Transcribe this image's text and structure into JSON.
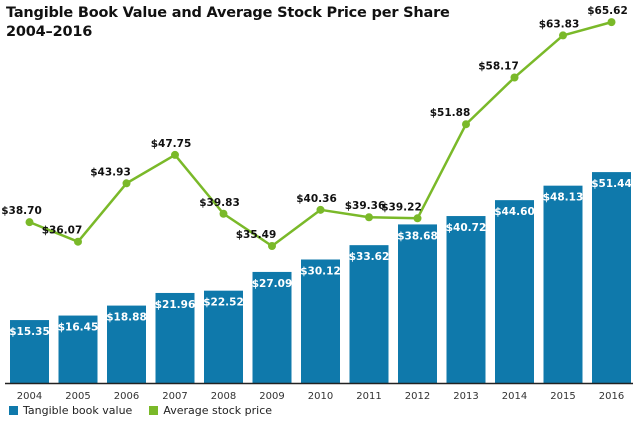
{
  "chart_data": {
    "type": "bar",
    "title": "Tangible Book Value and Average Stock Price per Share",
    "subtitle": "2004–2016",
    "xlabel": "",
    "ylabel": "",
    "grid": false,
    "legend_position": "bottom-left",
    "categories": [
      "2004",
      "2005",
      "2006",
      "2007",
      "2008",
      "2009",
      "2010",
      "2011",
      "2012",
      "2013",
      "2014",
      "2015",
      "2016"
    ],
    "series": [
      {
        "name": "Tangible book value",
        "type": "bar",
        "color": "#0f79ab",
        "values": [
          15.35,
          16.45,
          18.88,
          21.96,
          22.52,
          27.09,
          30.12,
          33.62,
          38.68,
          40.72,
          44.6,
          48.13,
          51.44
        ],
        "labels": [
          "$15.35",
          "$16.45",
          "$18.88",
          "$21.96",
          "$22.52",
          "$27.09",
          "$30.12",
          "$33.62",
          "$38.68",
          "$40.72",
          "$44.60",
          "$48.13",
          "$51.44"
        ]
      },
      {
        "name": "Average stock price",
        "type": "line",
        "color": "#7ab929",
        "values": [
          38.7,
          36.07,
          43.93,
          47.75,
          39.83,
          35.49,
          40.36,
          39.36,
          39.22,
          51.88,
          58.17,
          63.83,
          65.62
        ],
        "labels": [
          "$38.70",
          "$36.07",
          "$43.93",
          "$47.75",
          "$39.83",
          "$35.49",
          "$40.36",
          "$39.36",
          "$39.22",
          "$51.88",
          "$58.17",
          "$63.83",
          "$65.62"
        ]
      }
    ]
  }
}
